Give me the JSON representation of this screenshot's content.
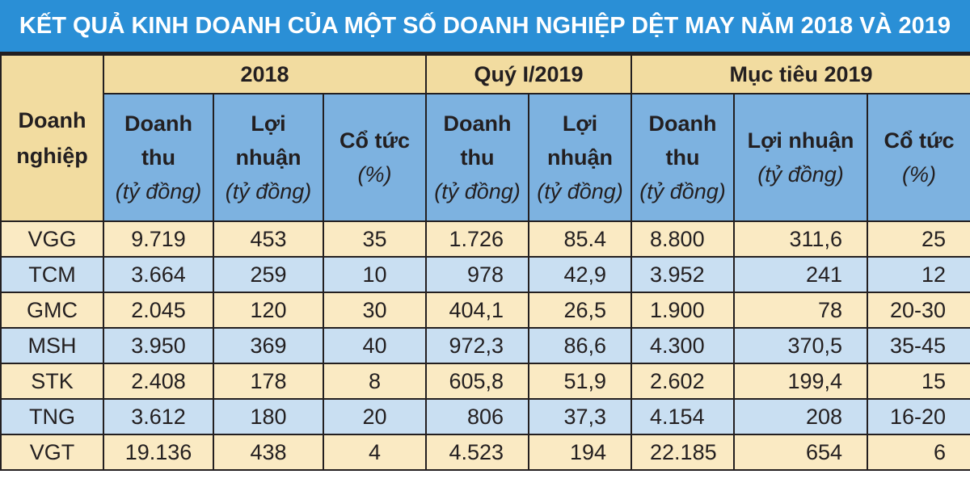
{
  "title": "KẾT QUẢ KINH DOANH CỦA MỘT SỐ DOANH NGHIỆP DỆT MAY NĂM 2018 VÀ 2019",
  "corner_label": [
    "Doanh",
    "nghiệp"
  ],
  "groups": [
    "2018",
    "Quý I/2019",
    "Mục tiêu 2019"
  ],
  "subheaders": [
    {
      "label": [
        "Doanh",
        "thu"
      ],
      "unit": "(tỷ đồng)"
    },
    {
      "label": [
        "Lợi",
        "nhuận"
      ],
      "unit": "(tỷ đồng)"
    },
    {
      "label": [
        "Cổ tức"
      ],
      "unit": "(%)"
    },
    {
      "label": [
        "Doanh",
        "thu"
      ],
      "unit": "(tỷ đồng)"
    },
    {
      "label": [
        "Lợi",
        "nhuận"
      ],
      "unit": "(tỷ đồng)"
    },
    {
      "label": [
        "Doanh",
        "thu"
      ],
      "unit": "(tỷ đồng)"
    },
    {
      "label": [
        "Lợi nhuận"
      ],
      "unit": "(tỷ đồng)"
    },
    {
      "label": [
        "Cổ tức"
      ],
      "unit": "(%)"
    }
  ],
  "rows": [
    [
      "VGG",
      "9.719",
      "453",
      "35",
      "1.726",
      "85.4",
      "8.800",
      "311,6",
      "25"
    ],
    [
      "TCM",
      "3.664",
      "259",
      "10",
      "978",
      "42,9",
      "3.952",
      "241",
      "12"
    ],
    [
      "GMC",
      "2.045",
      "120",
      "30",
      "404,1",
      "26,5",
      "1.900",
      "78",
      "20-30"
    ],
    [
      "MSH",
      "3.950",
      "369",
      "40",
      "972,3",
      "86,6",
      "4.300",
      "370,5",
      "35-45"
    ],
    [
      "STK",
      "2.408",
      "178",
      "8",
      "605,8",
      "51,9",
      "2.602",
      "199,4",
      "15"
    ],
    [
      "TNG",
      "3.612",
      "180",
      "20",
      "806",
      "37,3",
      "4.154",
      "208",
      "16-20"
    ],
    [
      "VGT",
      "19.136",
      "438",
      "4",
      "4.523",
      "194",
      "22.185",
      "654",
      "6"
    ]
  ],
  "colors": {
    "title_bg": "#2a8fd6",
    "header_tan": "#f2dca0",
    "header_blue": "#7db2e0",
    "row_tan": "#faeac3",
    "row_blue": "#c9dff2"
  }
}
